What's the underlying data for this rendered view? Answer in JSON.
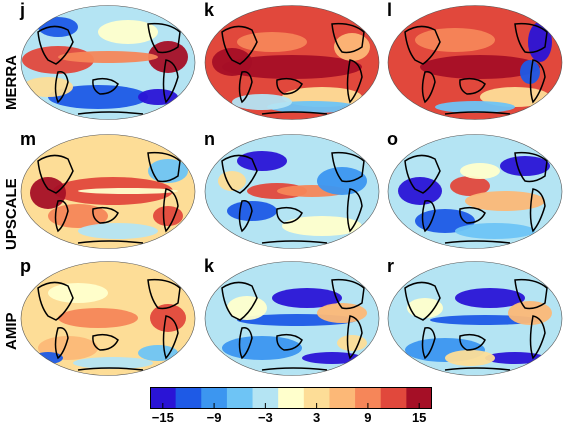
{
  "row_labels": [
    "MERRA",
    "UPSCALE",
    "AMIP"
  ],
  "panels": [
    {
      "letter": "j",
      "theme": "merra_j"
    },
    {
      "letter": "k",
      "theme": "merra_k"
    },
    {
      "letter": "l",
      "theme": "merra_l"
    },
    {
      "letter": "m",
      "theme": "upscale_m"
    },
    {
      "letter": "n",
      "theme": "upscale_n"
    },
    {
      "letter": "o",
      "theme": "upscale_o"
    },
    {
      "letter": "p",
      "theme": "amip_p"
    },
    {
      "letter": "k",
      "theme": "amip_k"
    },
    {
      "letter": "r",
      "theme": "amip_r"
    }
  ],
  "colorbar": {
    "colors": [
      "#2a14d6",
      "#1e5ae6",
      "#3c96f0",
      "#6ec4f5",
      "#b4e4f3",
      "#ffffcc",
      "#fddd97",
      "#fcb877",
      "#f68659",
      "#e1483c",
      "#a50f26"
    ],
    "tick_labels": [
      "−15",
      "−9",
      "−3",
      "3",
      "9",
      "15"
    ],
    "tick_values": [
      -15,
      -9,
      -3,
      3,
      9,
      15
    ]
  }
}
